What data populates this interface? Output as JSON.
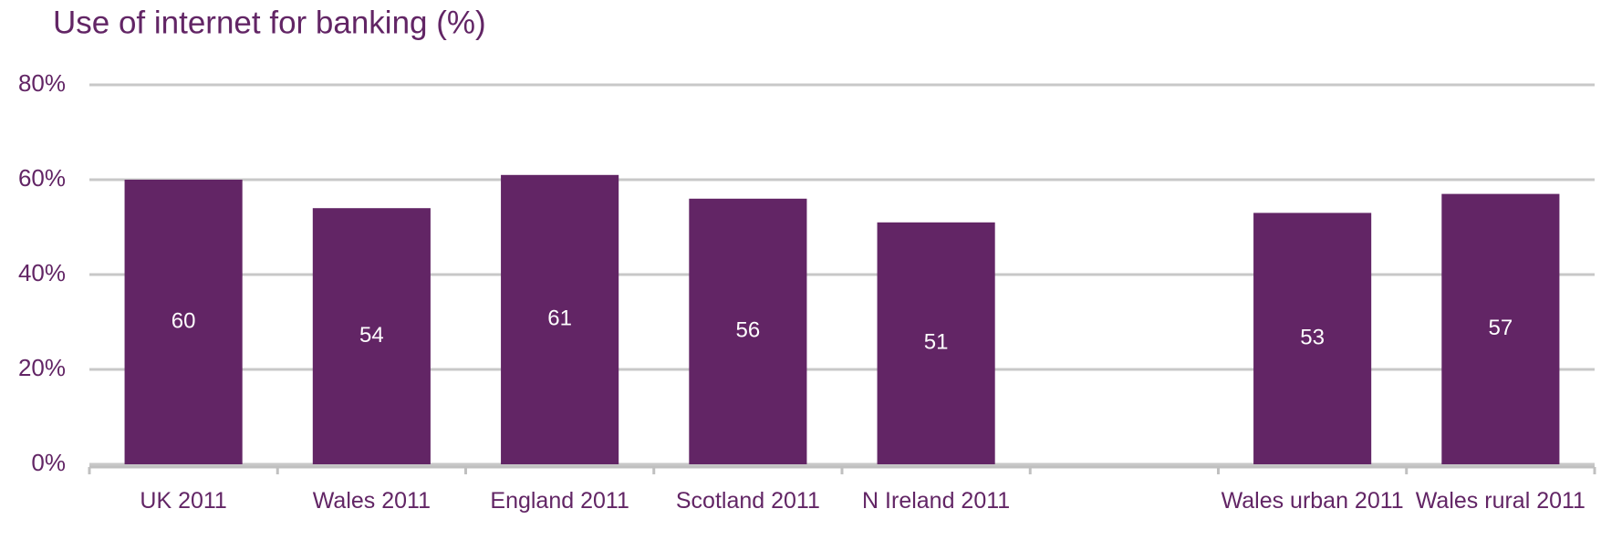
{
  "chart_data": {
    "type": "bar",
    "title": "Use of internet for banking (%)",
    "categories": [
      "UK 2011",
      "Wales 2011",
      "England 2011",
      "Scotland 2011",
      "N Ireland 2011",
      null,
      "Wales urban 2011",
      "Wales rural 2011"
    ],
    "values": [
      60,
      54,
      61,
      56,
      51,
      null,
      53,
      57
    ],
    "color": "#622565",
    "ylim": [
      0,
      80
    ],
    "yticks": [
      {
        "value": 0,
        "label": "0%"
      },
      {
        "value": 20,
        "label": "20%"
      },
      {
        "value": 40,
        "label": "40%"
      },
      {
        "value": 60,
        "label": "60%"
      },
      {
        "value": 80,
        "label": "80%"
      }
    ],
    "grid": true
  }
}
